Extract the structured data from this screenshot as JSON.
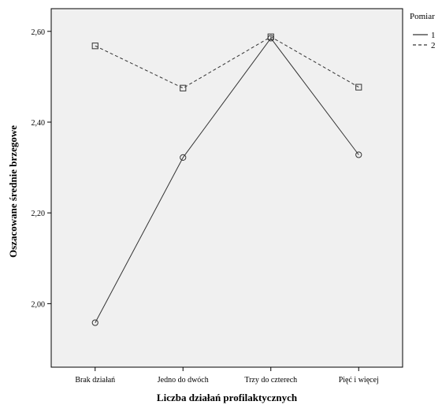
{
  "chart_data": {
    "type": "line",
    "xlabel": "Liczba działań profilaktycznych",
    "ylabel": "Oszacowane średnie brzegowe",
    "categories": [
      "Brak działań",
      "Jedno do dwóch",
      "Trzy do czterech",
      "Pięć i więcej"
    ],
    "ylim": [
      1.86,
      2.65
    ],
    "y_ticks": [
      2.0,
      2.2,
      2.4,
      2.6
    ],
    "y_tick_labels": [
      "2,00",
      "2,20",
      "2,40",
      "2,60"
    ],
    "grid": false,
    "plot_background": "#f0f0f0",
    "legend": {
      "title": "Pomiar",
      "placement": "top-right, outside plot"
    },
    "series": [
      {
        "name": "1",
        "values": [
          1.958,
          2.322,
          2.585,
          2.328
        ],
        "line_style": "solid",
        "marker": "circle",
        "color": "#333333"
      },
      {
        "name": "2",
        "values": [
          2.568,
          2.475,
          2.588,
          2.477
        ],
        "line_style": "dashed",
        "marker": "square",
        "color": "#333333"
      }
    ]
  }
}
